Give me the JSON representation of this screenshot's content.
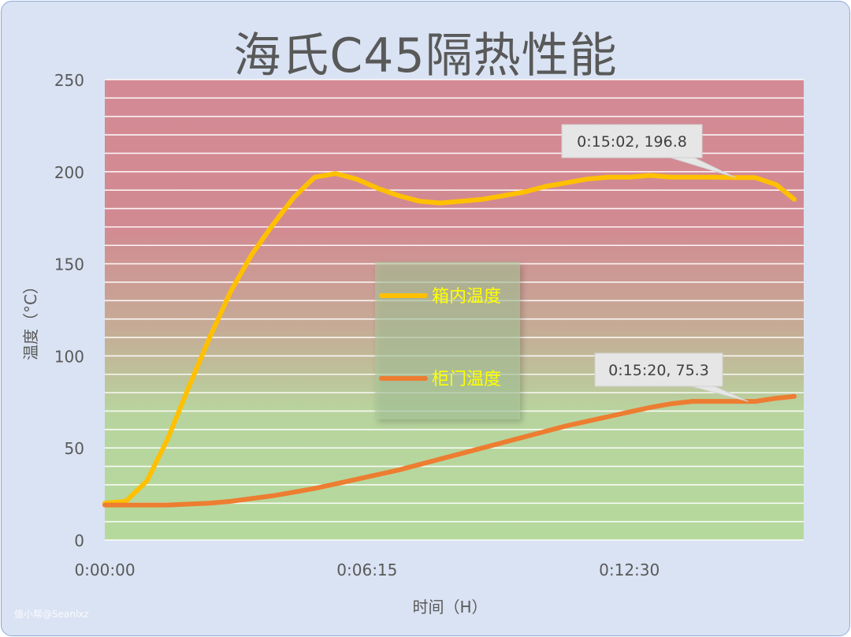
{
  "chart_data": {
    "type": "line",
    "title": "海氏C45隔热性能",
    "xlabel": "时间（H）",
    "ylabel": "温度（°C）",
    "ylim": [
      0,
      250
    ],
    "yticks": [
      "0",
      "50",
      "100",
      "150",
      "200",
      "250"
    ],
    "xticks": [
      "0:00:00",
      "0:06:15",
      "0:12:30"
    ],
    "x_unit": "minutes",
    "xlim": [
      0,
      16.43
    ],
    "grid": true,
    "background_bands": "red above ~170°C, green below ~80°C, gradient between",
    "legend_position": "center",
    "series": [
      {
        "name": "箱内温度",
        "color": "#ffc000",
        "x": [
          0,
          0.5,
          1,
          1.5,
          2,
          2.5,
          3,
          3.5,
          4,
          4.5,
          5,
          5.5,
          6,
          6.5,
          7,
          7.5,
          8,
          8.5,
          9,
          9.5,
          10,
          10.5,
          11,
          11.5,
          12,
          12.5,
          13,
          13.5,
          14,
          14.5,
          15,
          15.5,
          16,
          16.43
        ],
        "values": [
          20,
          21,
          32,
          55,
          83,
          110,
          135,
          155,
          171,
          186,
          197,
          199,
          196,
          191,
          187,
          184,
          183,
          184,
          185,
          187,
          189,
          192,
          194,
          196,
          197,
          197,
          198,
          197,
          197,
          197,
          196.8,
          196.8,
          193,
          185
        ]
      },
      {
        "name": "柜门温度",
        "color": "#ed7d31",
        "x": [
          0,
          0.5,
          1,
          1.5,
          2,
          2.5,
          3,
          3.5,
          4,
          4.5,
          5,
          5.5,
          6,
          6.5,
          7,
          7.5,
          8,
          8.5,
          9,
          9.5,
          10,
          10.5,
          11,
          11.5,
          12,
          12.5,
          13,
          13.5,
          14,
          14.5,
          15,
          15.5,
          16,
          16.43
        ],
        "values": [
          19,
          19,
          19,
          19,
          19.5,
          20,
          21,
          22.5,
          24,
          26,
          28,
          30.5,
          33,
          35.5,
          38,
          41,
          44,
          47,
          50,
          53,
          56,
          59,
          62,
          64.5,
          67,
          69.5,
          72,
          74,
          75.3,
          75.3,
          75.3,
          75.3,
          77,
          78
        ]
      }
    ],
    "annotations": [
      {
        "label": "0:15:02, 196.8",
        "series": 0,
        "x": 15.03,
        "y": 196.8
      },
      {
        "label": "0:15:20, 75.3",
        "series": 1,
        "x": 15.33,
        "y": 75.3
      }
    ]
  },
  "watermark": "值小帮@Seanlxz"
}
